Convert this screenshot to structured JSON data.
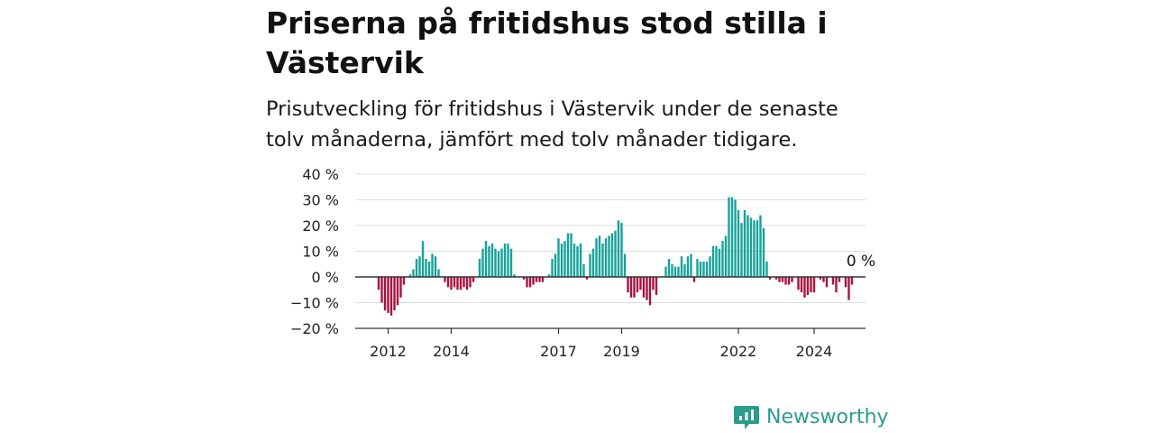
{
  "title": "Priserna på fritidshus stod stilla i Västervik",
  "subtitle": "Prisutveckling för fritidshus i Västervik under de senaste tolv månaderna, jämfört med tolv månader tidigare.",
  "brand": "Newsworthy",
  "colors": {
    "positive": "#17a29a",
    "negative": "#a8123e",
    "brand": "#2a9d8f"
  },
  "chart_data": {
    "type": "bar",
    "ylim": [
      -20,
      40
    ],
    "yticks": [
      40,
      30,
      20,
      10,
      0,
      -10,
      -20
    ],
    "ytick_labels": [
      "40 %",
      "30 %",
      "20 %",
      "10 %",
      "0 %",
      "−10 %",
      "−20 %"
    ],
    "xtick_labels": [
      {
        "label": "2012",
        "index": 3
      },
      {
        "label": "2014",
        "index": 23
      },
      {
        "label": "2017",
        "index": 57
      },
      {
        "label": "2019",
        "index": 77
      },
      {
        "label": "2022",
        "index": 114
      },
      {
        "label": "2024",
        "index": 138
      }
    ],
    "annotation": "0 %",
    "values": [
      -5,
      -10,
      -13,
      -14,
      -15,
      -13,
      -11,
      -8,
      -3,
      0,
      1,
      3,
      7,
      8,
      14,
      7,
      6,
      9,
      8,
      3,
      0,
      -2,
      -4,
      -5,
      -4,
      -5,
      -5,
      -4,
      -5,
      -4,
      -2,
      0,
      7,
      11,
      14,
      12,
      13,
      11,
      10,
      11,
      13,
      13,
      11,
      1,
      0,
      0,
      -1,
      -4,
      -4,
      -3,
      -2,
      -2,
      -2,
      0,
      1,
      7,
      9,
      15,
      13,
      14,
      17,
      17,
      13,
      12,
      13,
      5,
      -1,
      9,
      11,
      15,
      16,
      13,
      15,
      16,
      17,
      18,
      22,
      21,
      9,
      -6,
      -8,
      -8,
      -6,
      -5,
      -8,
      -9,
      -11,
      -5,
      -7,
      0,
      0,
      4,
      7,
      5,
      4,
      4,
      8,
      5,
      8,
      9,
      -2,
      7,
      6,
      6,
      6,
      8,
      12,
      12,
      11,
      14,
      16,
      31,
      31,
      30,
      26,
      21,
      26,
      24,
      23,
      22,
      22,
      24,
      19,
      6,
      -1,
      0,
      -1,
      -2,
      -2,
      -3,
      -3,
      -2,
      0,
      -5,
      -6,
      -8,
      -7,
      -6,
      -6,
      0,
      -1,
      -2,
      -4,
      0,
      -3,
      -6,
      -2,
      0,
      -4,
      -9,
      -3
    ]
  }
}
